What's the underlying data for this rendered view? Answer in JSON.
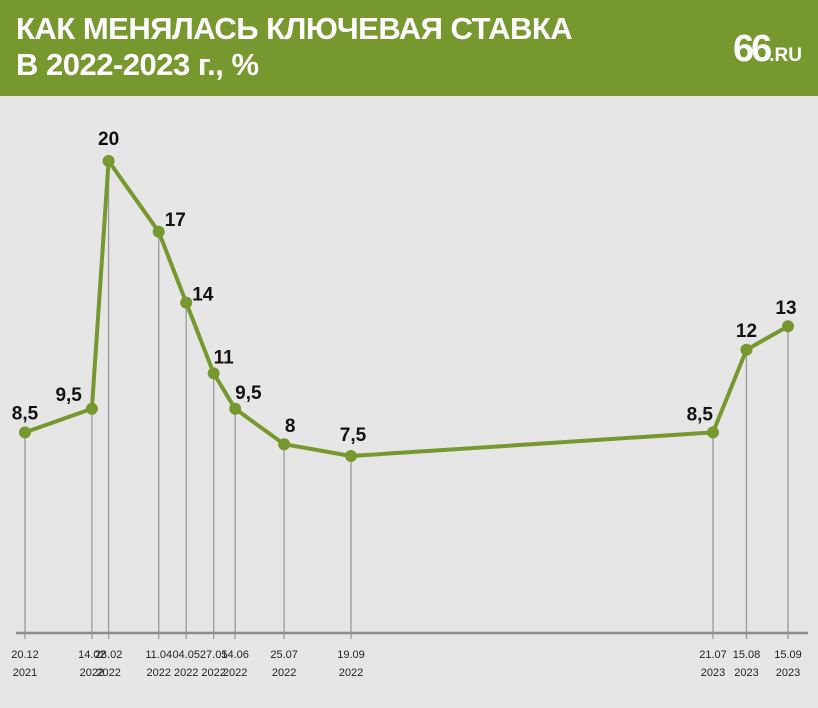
{
  "header": {
    "title_line1": "КАК МЕНЯЛАСЬ КЛЮЧЕВАЯ СТАВКА",
    "title_line2": "В 2022-2023 г., %",
    "logo_number": "66",
    "logo_domain": ".RU",
    "background_color": "#76982f"
  },
  "chart_data": {
    "type": "line",
    "title": "КАК МЕНЯЛАСЬ КЛЮЧЕВАЯ СТАВКА В 2022-2023 г., %",
    "xlabel": "",
    "ylabel": "",
    "grid": false,
    "line_color": "#76982f",
    "ylim": [
      0,
      22
    ],
    "points": [
      {
        "date": "2021-12-20",
        "date_label": "20.12",
        "year_label": "2021",
        "value": 8.5,
        "value_label": "8,5"
      },
      {
        "date": "2022-02-14",
        "date_label": "14.02",
        "year_label": "2022",
        "value": 9.5,
        "value_label": "9,5"
      },
      {
        "date": "2022-02-28",
        "date_label": "28.02",
        "year_label": "2022",
        "value": 20,
        "value_label": "20"
      },
      {
        "date": "2022-04-11",
        "date_label": "11.04",
        "year_label": "2022",
        "value": 17,
        "value_label": "17"
      },
      {
        "date": "2022-05-04",
        "date_label": "04.05",
        "year_label": "2022",
        "value": 14,
        "value_label": "14"
      },
      {
        "date": "2022-05-27",
        "date_label": "27.05",
        "year_label": "2022",
        "value": 11,
        "value_label": "11"
      },
      {
        "date": "2022-06-14",
        "date_label": "14.06",
        "year_label": "2022",
        "value": 9.5,
        "value_label": "9,5"
      },
      {
        "date": "2022-07-25",
        "date_label": "25.07",
        "year_label": "2022",
        "value": 8,
        "value_label": "8"
      },
      {
        "date": "2022-09-19",
        "date_label": "19.09",
        "year_label": "2022",
        "value": 7.5,
        "value_label": "7,5"
      },
      {
        "date": "2023-07-21",
        "date_label": "21.07",
        "year_label": "2023",
        "value": 8.5,
        "value_label": "8,5"
      },
      {
        "date": "2023-08-15",
        "date_label": "15.08",
        "year_label": "2023",
        "value": 12,
        "value_label": "12"
      },
      {
        "date": "2023-09-15",
        "date_label": "15.09",
        "year_label": "2023",
        "value": 13,
        "value_label": "13"
      }
    ]
  }
}
